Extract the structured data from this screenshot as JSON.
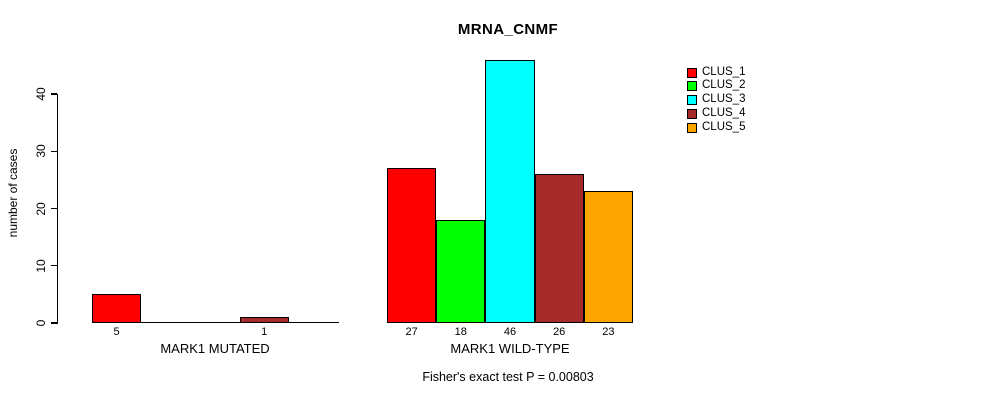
{
  "title": "MRNA_CNMF",
  "ylabel": "number of cases",
  "caption": "Fisher's exact test P = 0.00803",
  "legend": {
    "position": "top-right",
    "items": [
      {
        "label": "CLUS_1",
        "color": "#FF0000"
      },
      {
        "label": "CLUS_2",
        "color": "#00FF00"
      },
      {
        "label": "CLUS_3",
        "color": "#00FFFF"
      },
      {
        "label": "CLUS_4",
        "color": "#A52A2A"
      },
      {
        "label": "CLUS_5",
        "color": "#FFA500"
      }
    ]
  },
  "chart_data": {
    "type": "bar",
    "title": "MRNA_CNMF",
    "xlabel": "",
    "ylabel": "number of cases",
    "yticks": [
      0,
      10,
      20,
      30,
      40
    ],
    "ylim": [
      0,
      46
    ],
    "grid": false,
    "legend_position": "top-right",
    "series_names": [
      "CLUS_1",
      "CLUS_2",
      "CLUS_3",
      "CLUS_4",
      "CLUS_5"
    ],
    "colors": [
      "#FF0000",
      "#00FF00",
      "#00FFFF",
      "#A52A2A",
      "#FFA500"
    ],
    "groups": [
      {
        "label": "MARK1 MUTATED",
        "values": [
          5,
          0,
          0,
          1,
          0
        ]
      },
      {
        "label": "MARK1 WILD-TYPE",
        "values": [
          27,
          18,
          46,
          26,
          23
        ]
      }
    ],
    "annotation": "Fisher's exact test P = 0.00803"
  }
}
